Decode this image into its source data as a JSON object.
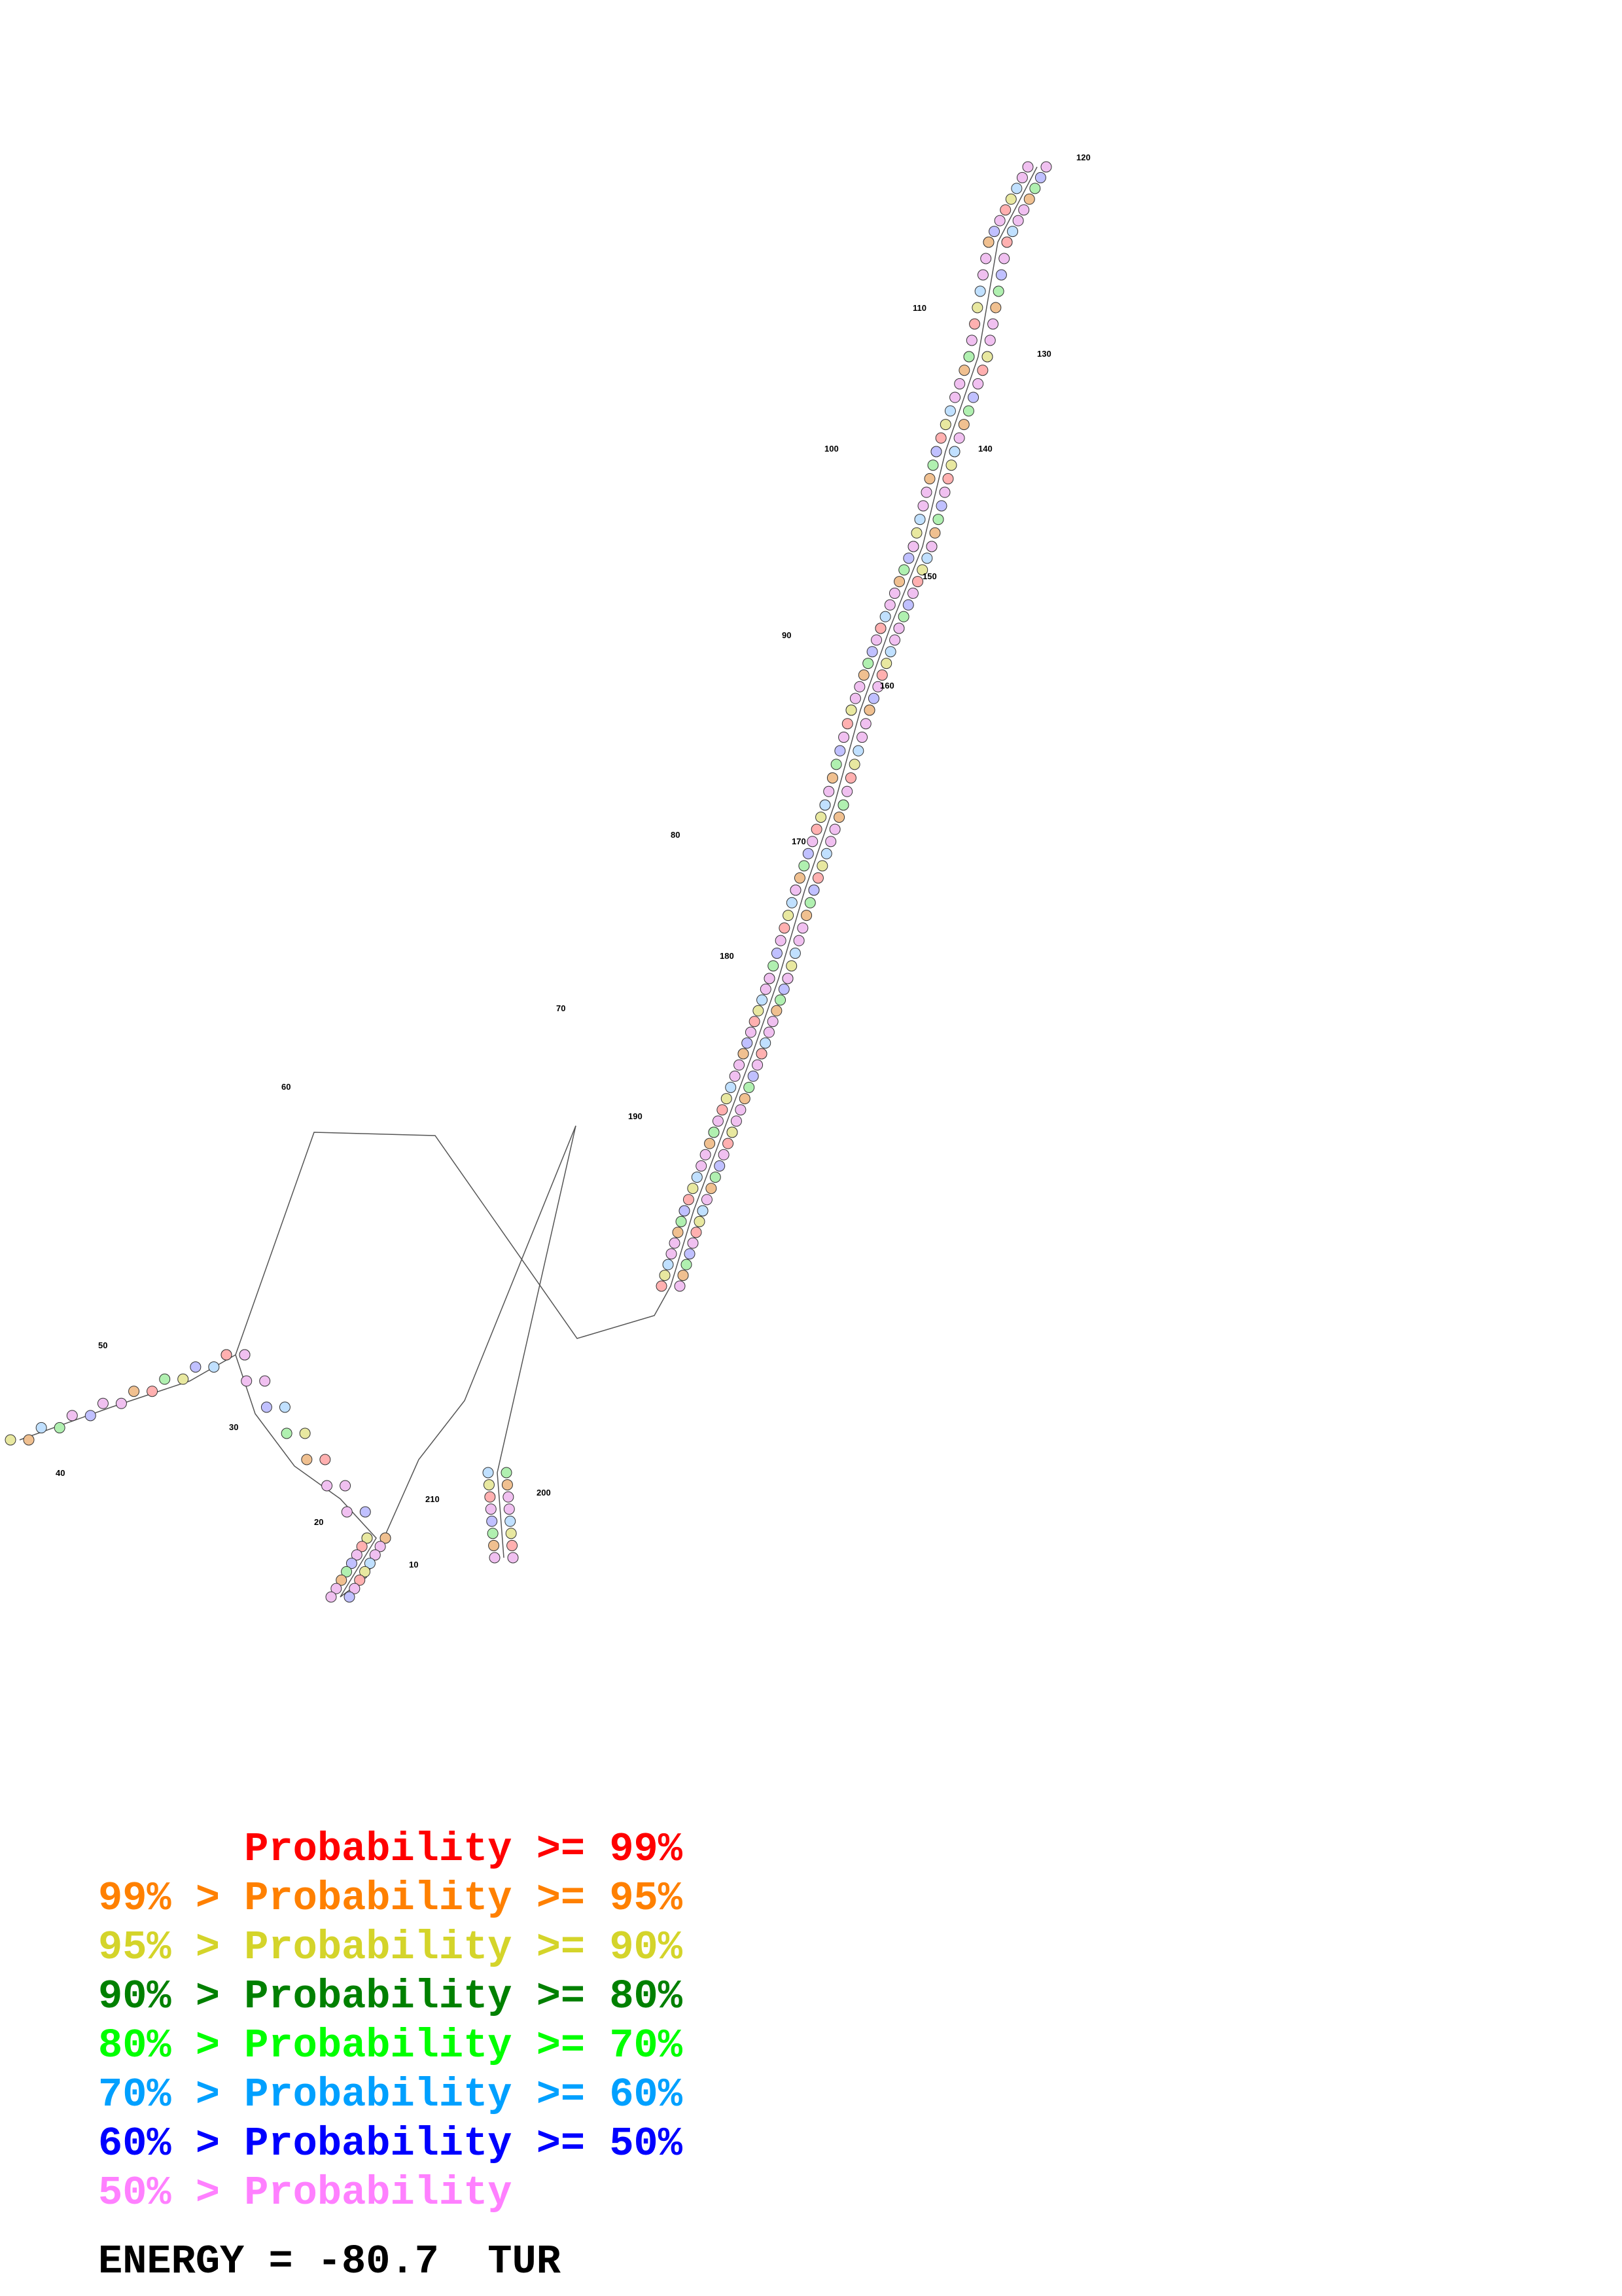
{
  "legend": [
    {
      "text": "      Probability >= 99%",
      "color": "#ff0000"
    },
    {
      "text": "99% > Probability >= 95%",
      "color": "#ff8000"
    },
    {
      "text": "95% > Probability >= 90%",
      "color": "#d4d42a"
    },
    {
      "text": "90% > Probability >= 80%",
      "color": "#008000"
    },
    {
      "text": "80% > Probability >= 70%",
      "color": "#00ff00"
    },
    {
      "text": "70% > Probability >= 60%",
      "color": "#00a0ff"
    },
    {
      "text": "60% > Probability >= 50%",
      "color": "#0000ff"
    },
    {
      "text": "50% > Probability",
      "color": "#ff80ff"
    }
  ],
  "energy": "ENERGY = -80.7  TUR",
  "position_labels": [
    "10",
    "20",
    "30",
    "40",
    "50",
    "60",
    "70",
    "80",
    "90",
    "100",
    "110",
    "120",
    "130",
    "140",
    "150",
    "160",
    "170",
    "180",
    "190",
    "200",
    "210"
  ],
  "colors": {
    "backbone": "#555555",
    "pair_line": "#000000"
  }
}
